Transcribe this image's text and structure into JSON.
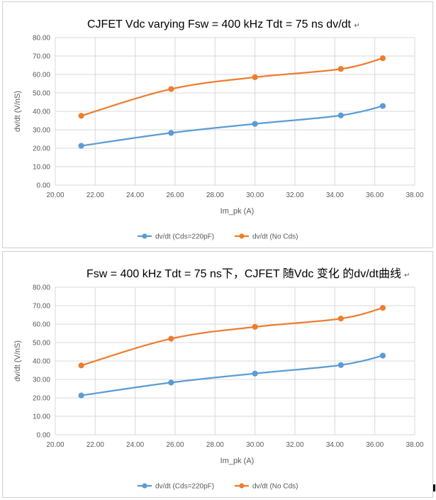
{
  "chart_data": [
    {
      "type": "line",
      "title": "CJFET Vdc varying Fsw = 400 kHz Tdt = 75 ns dv/dt",
      "title_mark": "↵",
      "xlabel": "Im_pk (A)",
      "ylabel": "dv/dt (V/nS)",
      "xlim": [
        20,
        38
      ],
      "ylim": [
        0,
        80
      ],
      "xticks": [
        "20.00",
        "22.00",
        "24.00",
        "26.00",
        "28.00",
        "30.00",
        "32.00",
        "34.00",
        "36.00",
        "38.00"
      ],
      "yticks": [
        "0.00",
        "10.00",
        "20.00",
        "30.00",
        "40.00",
        "50.00",
        "60.00",
        "70.00",
        "80.00"
      ],
      "grid": true,
      "legend_position": "bottom",
      "series": [
        {
          "name": "dv/dt (Cds=220pF)",
          "color": "#5b9bd5",
          "points": [
            [
              21.3,
              21.3
            ],
            [
              25.8,
              28.3
            ],
            [
              30.0,
              33.2
            ],
            [
              34.3,
              37.8
            ],
            [
              36.4,
              42.9
            ]
          ]
        },
        {
          "name": "dv/dt (No Cds)",
          "color": "#ed7d31",
          "points": [
            [
              21.3,
              37.6
            ],
            [
              25.8,
              52.1
            ],
            [
              30.0,
              58.5
            ],
            [
              34.3,
              63.0
            ],
            [
              36.4,
              68.8
            ]
          ]
        }
      ]
    },
    {
      "type": "line",
      "title": "Fsw = 400 kHz Tdt = 75 ns下，CJFET 随Vdc 变化 的dv/dt曲线",
      "title_mark": "↵",
      "xlabel": "Im_pk (A)",
      "ylabel": "dv/dt (V/nS)",
      "xlim": [
        20,
        38
      ],
      "ylim": [
        0,
        80
      ],
      "xticks": [
        "20.00",
        "22.00",
        "24.00",
        "26.00",
        "28.00",
        "30.00",
        "32.00",
        "34.00",
        "36.00",
        "38.00"
      ],
      "yticks": [
        "0.00",
        "10.00",
        "20.00",
        "30.00",
        "40.00",
        "50.00",
        "60.00",
        "70.00",
        "80.00"
      ],
      "grid": true,
      "legend_position": "bottom",
      "series": [
        {
          "name": "dv/dt (Cds=220pF)",
          "color": "#5b9bd5",
          "points": [
            [
              21.3,
              21.3
            ],
            [
              25.8,
              28.3
            ],
            [
              30.0,
              33.2
            ],
            [
              34.3,
              37.8
            ],
            [
              36.4,
              42.9
            ]
          ]
        },
        {
          "name": "dv/dt (No Cds)",
          "color": "#ed7d31",
          "points": [
            [
              21.3,
              37.6
            ],
            [
              25.8,
              52.1
            ],
            [
              30.0,
              58.5
            ],
            [
              34.3,
              63.0
            ],
            [
              36.4,
              68.8
            ]
          ]
        }
      ]
    }
  ]
}
